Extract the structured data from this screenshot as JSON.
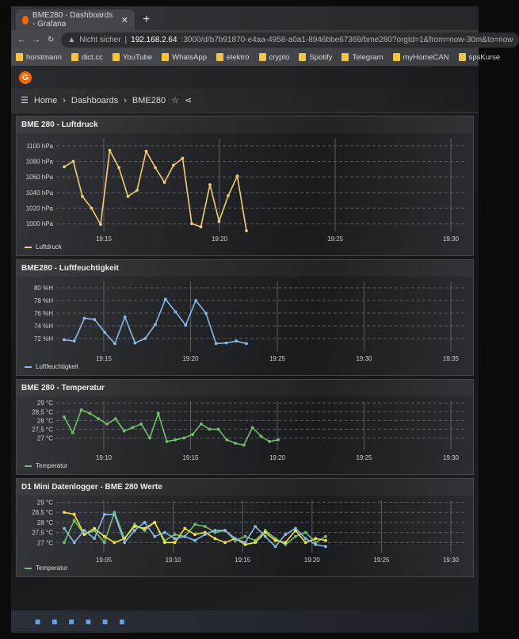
{
  "browser": {
    "tab_title": "BME280 - Dashboards - Grafana",
    "new_tab": "+",
    "security": "Nicht sicher",
    "url_host": "192.168.2.64",
    "url_rest": ":3000/d/b7b91870-e4aa-4958-a0a1-8946bbe67369/bme280?orgId=1&from=now-30m&to=now",
    "bookmarks": [
      "horstmann",
      "dict.cc",
      "YouTube",
      "WhatsApp",
      "elektro",
      "crypto",
      "Spotify",
      "Telegram",
      "myHomeCAN",
      "spsKurse"
    ]
  },
  "breadcrumb": {
    "home": "Home",
    "dashboards": "Dashboards",
    "current": "BME280"
  },
  "panels": [
    {
      "title": "BME 280 - Luftdruck",
      "legend": "Luftdruck",
      "color": "#f2cc72",
      "unit": " hPa",
      "yticks": [
        1000,
        1020,
        1040,
        1060,
        1080,
        1100
      ],
      "ylim": [
        990,
        1110
      ],
      "xticks": [
        "19:15",
        "19:20",
        "19:25",
        "19:30"
      ],
      "series": [
        [
          1073,
          1080,
          1035,
          1020,
          999,
          1094,
          1072,
          1035,
          1043,
          1093,
          1072,
          1053,
          1075,
          1084,
          1000,
          996,
          1050,
          1003,
          1036,
          1061,
          991
        ]
      ]
    },
    {
      "title": "BME280 - Luftfeuchtigkeit",
      "legend": "Luftfeuchtigkeit",
      "color": "#8ab8e8",
      "unit": " %H",
      "yticks": [
        72,
        74,
        76,
        78,
        80
      ],
      "ylim": [
        70,
        81
      ],
      "xticks": [
        "19:15",
        "19:20",
        "19:25",
        "19:30",
        "19:35"
      ],
      "series": [
        [
          71.8,
          71.6,
          75.2,
          75,
          73,
          71.2,
          75.4,
          71.3,
          72,
          74.2,
          78.2,
          76.2,
          74.1,
          78,
          76,
          71.2,
          71.3,
          71.6,
          71.2
        ]
      ]
    },
    {
      "title": "BME 280 - Temperatur",
      "legend": "Temperatur",
      "color": "#73bf69",
      "unit": " °C",
      "yticks": [
        "27",
        "27,5",
        "28",
        "28,5",
        "29"
      ],
      "ylim": [
        26.3,
        29.1
      ],
      "xticks": [
        "19:10",
        "19:15",
        "19:20",
        "19:25",
        "19:30"
      ],
      "series": [
        [
          28.2,
          27.3,
          28.6,
          28.4,
          28.1,
          27.8,
          28.1,
          27.4,
          27.6,
          27.8,
          27,
          28.4,
          26.8,
          26.9,
          27,
          27.2,
          27.8,
          27.5,
          27.5,
          26.9,
          26.7,
          26.6,
          27.6,
          27.1,
          26.8,
          26.9
        ]
      ]
    },
    {
      "title": "D1 Mini Datenlogger - BME 280 Werte",
      "legend": "Temperatur",
      "color": "#73bf69",
      "unit": " °C",
      "yticks": [
        "27",
        "27,5",
        "28",
        "28,5",
        "29"
      ],
      "ylim": [
        26.5,
        29.1
      ],
      "xticks": [
        "19:05",
        "19:10",
        "19:15",
        "19:20",
        "19:25",
        "19:30"
      ],
      "colors": [
        "#73bf69",
        "#f2e24a",
        "#8ab8e8"
      ],
      "series": [
        [
          27,
          28.1,
          27.4,
          27.6,
          27,
          28.5,
          27.2,
          27.9,
          27.6,
          28,
          27.1,
          27.4,
          27.3,
          27.9,
          27.8,
          27.5,
          27.6,
          27.1,
          27.3,
          27.1,
          27.6,
          27.2,
          26.9,
          27.3,
          27.5,
          27,
          27.3
        ],
        [
          28.5,
          28.4,
          27.4,
          27.7,
          27.3,
          27,
          27.2,
          27.8,
          27.7,
          28,
          27,
          27,
          27.7,
          27.4,
          27.5,
          27.2,
          27,
          27.2,
          26.9,
          27,
          27.5,
          27.1,
          27,
          27.6,
          27,
          27.2,
          27.1
        ],
        [
          27.7,
          27,
          27.6,
          27.2,
          28.4,
          28.4,
          27,
          27.6,
          28,
          27.3,
          27.5,
          27.2,
          27.3,
          27.1,
          27.4,
          27.6,
          27.6,
          27.2,
          27,
          27.8,
          27.3,
          26.8,
          27.4,
          27.7,
          27.2,
          26.9,
          26.8
        ]
      ]
    }
  ],
  "taskbar_icons": [
    "windows",
    "search",
    "chrome",
    "files",
    "settings",
    "app"
  ]
}
